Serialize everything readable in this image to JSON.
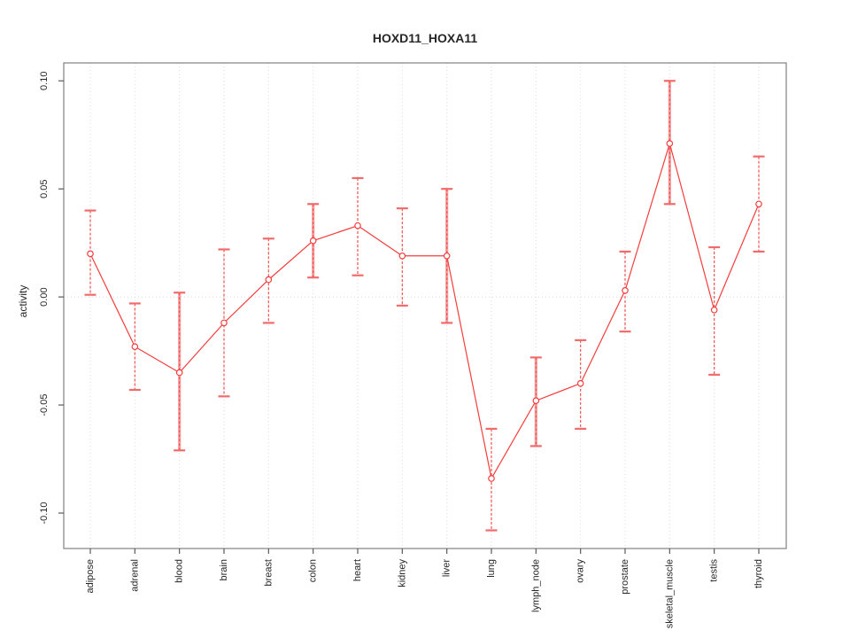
{
  "title": "HOXD11_HOXA11",
  "chart_data": {
    "type": "line",
    "title": "HOXD11_HOXA11",
    "xlabel": "",
    "ylabel": "activity",
    "legend_position": "none",
    "grid": "vertical dotted gridlines at each category plus dotted horizontal line at y=0",
    "ylim": [
      -0.1164,
      0.1083
    ],
    "yticks": [
      0.1,
      0.05,
      0.0,
      -0.05,
      -0.1
    ],
    "ytick_labels": [
      "0.10",
      "0.05",
      "0.00",
      "-0.05",
      "-0.10"
    ],
    "categories": [
      "adipose",
      "adrenal",
      "blood",
      "brain",
      "breast",
      "colon",
      "heart",
      "kidney",
      "liver",
      "lung",
      "lymph_node",
      "ovary",
      "prostate",
      "skeletal_muscle",
      "testis",
      "thyroid"
    ],
    "series": [
      {
        "name": "activity",
        "marker": "open-circle",
        "values": [
          0.02,
          -0.023,
          -0.035,
          -0.012,
          0.008,
          0.026,
          0.033,
          0.019,
          0.019,
          -0.084,
          -0.048,
          -0.04,
          0.003,
          0.071,
          -0.006,
          0.043
        ],
        "ci_low": [
          0.001,
          -0.043,
          -0.071,
          -0.046,
          -0.012,
          0.009,
          0.01,
          -0.004,
          -0.012,
          -0.108,
          -0.069,
          -0.061,
          -0.016,
          0.043,
          -0.036,
          0.021
        ],
        "ci_high": [
          0.04,
          -0.003,
          0.002,
          0.022,
          0.027,
          0.043,
          0.055,
          0.041,
          0.05,
          -0.061,
          -0.028,
          -0.02,
          0.021,
          0.1,
          0.023,
          0.065
        ]
      }
    ],
    "thick_bars": [
      "blood",
      "colon",
      "liver",
      "lymph_node",
      "skeletal_muscle"
    ],
    "colors": {
      "line": "#f53d3d",
      "marker": "#f53d3d",
      "error_bar_dash": "#f25252",
      "error_bar_thick": "#f5a0a0",
      "error_cap": "#f26b6b",
      "grid": "#dcdcdc",
      "zero_line": "#d6d6d6",
      "box": "#8a8a8a",
      "tick": "#5a5a5a",
      "text": "#262626"
    }
  }
}
